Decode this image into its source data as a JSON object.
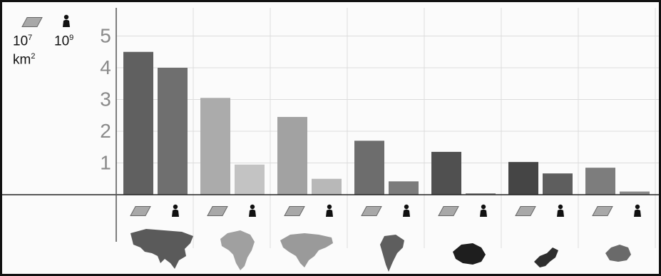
{
  "legend": {
    "area_icon": "parallelogram-icon",
    "population_icon": "person-icon",
    "area_unit_base": "10",
    "area_unit_exp": "7",
    "area_unit_km": "km",
    "area_unit_km_exp": "2",
    "population_unit_base": "10",
    "population_unit_exp": "9"
  },
  "chart_data": {
    "type": "bar",
    "categories_icons": [
      "asia-map",
      "africa-map",
      "north-america-map",
      "south-america-map",
      "antarctica-map",
      "europe-map",
      "australia-map"
    ],
    "series": [
      {
        "icon": "parallelogram-icon",
        "values": [
          4.5,
          3.05,
          2.45,
          1.7,
          1.35,
          1.03,
          0.85
        ]
      },
      {
        "icon": "person-icon",
        "values": [
          4.0,
          0.95,
          0.5,
          0.42,
          0.03,
          0.67,
          0.1
        ]
      }
    ],
    "y_ticks": [
      "1",
      "2",
      "3",
      "4",
      "5"
    ],
    "ylim": [
      0,
      5.5
    ],
    "grid": true,
    "colors": {
      "area": [
        "#606060",
        "#ababab",
        "#a2a2a2",
        "#6d6d6d",
        "#505050",
        "#454545",
        "#7d7d7d"
      ],
      "population": [
        "#6f6f6f",
        "#c3c3c3",
        "#b8b8b8",
        "#7c7c7c",
        "#8a8a8a",
        "#5e5e5e",
        "#8a8a8a"
      ]
    }
  }
}
